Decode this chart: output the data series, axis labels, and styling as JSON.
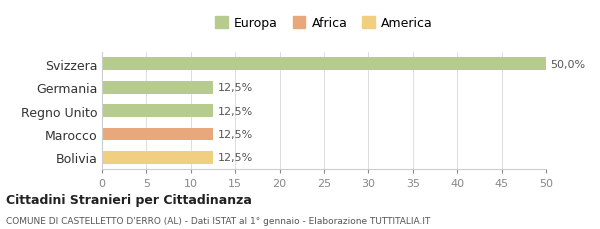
{
  "categories": [
    "Svizzera",
    "Germania",
    "Regno Unito",
    "Marocco",
    "Bolivia"
  ],
  "values": [
    50.0,
    12.5,
    12.5,
    12.5,
    12.5
  ],
  "colors": [
    "#b5cc8e",
    "#b5cc8e",
    "#b5cc8e",
    "#e8a87c",
    "#f0d080"
  ],
  "continent_colors": {
    "Europa": "#b5cc8e",
    "Africa": "#e8a87c",
    "America": "#f0d080"
  },
  "legend_labels": [
    "Europa",
    "Africa",
    "America"
  ],
  "xlim": [
    0,
    50
  ],
  "xticks": [
    0,
    5,
    10,
    15,
    20,
    25,
    30,
    35,
    40,
    45,
    50
  ],
  "bar_labels": [
    "50,0%",
    "12,5%",
    "12,5%",
    "12,5%",
    "12,5%"
  ],
  "title_bold": "Cittadini Stranieri per Cittadinanza",
  "subtitle": "COMUNE DI CASTELLETTO D'ERRO (AL) - Dati ISTAT al 1° gennaio - Elaborazione TUTTITALIA.IT",
  "background_color": "#ffffff",
  "grid_color": "#dddddd"
}
